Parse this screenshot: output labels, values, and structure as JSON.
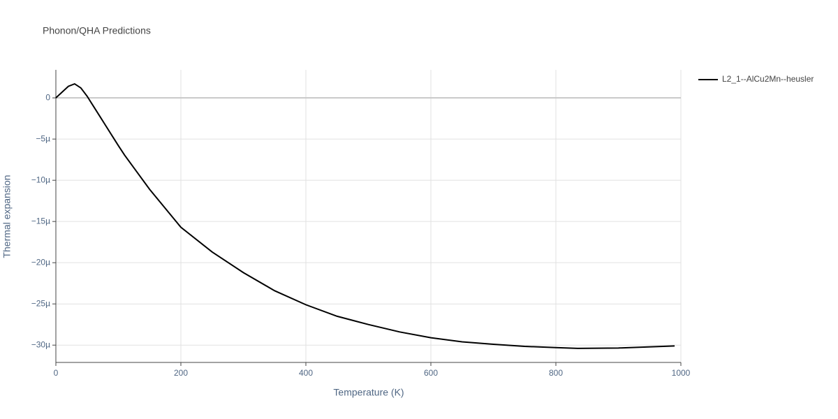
{
  "chart_data": {
    "type": "line",
    "title": "Phonon/QHA Predictions",
    "x_label": "Temperature (K)",
    "y_label": "Thermal expansion",
    "x": [
      0,
      10,
      20,
      30,
      40,
      50,
      60,
      70,
      80,
      90,
      100,
      110,
      150,
      200,
      250,
      300,
      350,
      400,
      450,
      500,
      550,
      600,
      650,
      700,
      750,
      800,
      835,
      900,
      990
    ],
    "series": [
      {
        "name": "L2_1--AlCu2Mn--heusler",
        "color": "#000000",
        "values": [
          0,
          7e-07,
          1.4e-06,
          1.7e-06,
          1.2e-06,
          2e-07,
          -1e-06,
          -2.2e-06,
          -3.4e-06,
          -4.6e-06,
          -5.8e-06,
          -6.95e-06,
          -1.11e-05,
          -1.57e-05,
          -1.87e-05,
          -2.12e-05,
          -2.34e-05,
          -2.51e-05,
          -2.65e-05,
          -2.75e-05,
          -2.84e-05,
          -2.91e-05,
          -2.96e-05,
          -2.99e-05,
          -3.015e-05,
          -3.03e-05,
          -3.04e-05,
          -3.035e-05,
          -3.01e-05
        ]
      }
    ],
    "xlim": [
      0,
      1000
    ],
    "xticks": [
      0,
      200,
      400,
      600,
      800,
      1000
    ],
    "ylim": [
      -3.21e-05,
      3.4e-06
    ],
    "yticks": [
      0,
      {
        "value": -5e-06,
        "label": "−5µ"
      },
      {
        "value": -1e-05,
        "label": "−10µ"
      },
      {
        "value": -1.5e-05,
        "label": "−15µ"
      },
      {
        "value": -2e-05,
        "label": "−20µ"
      },
      {
        "value": -2.5e-05,
        "label": "−25µ"
      },
      {
        "value": -3e-05,
        "label": "−30µ"
      }
    ],
    "grid": true,
    "legend": "right"
  }
}
